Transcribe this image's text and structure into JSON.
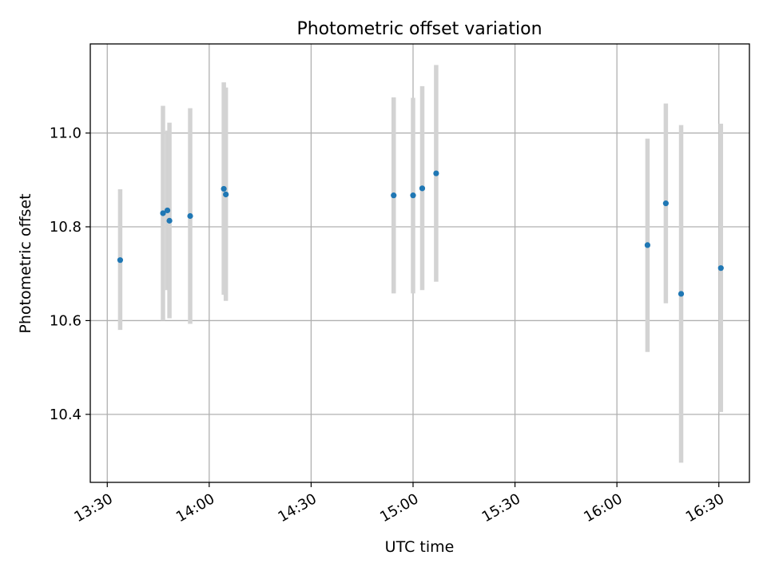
{
  "chart_data": {
    "type": "scatter",
    "title": "Photometric offset variation",
    "xlabel": "UTC time",
    "ylabel": "Photometric offset",
    "xlim": [
      "13:25",
      "16:39"
    ],
    "ylim": [
      10.255,
      11.19
    ],
    "x_ticks": [
      "13:30",
      "14:00",
      "14:30",
      "15:00",
      "15:30",
      "16:00",
      "16:30"
    ],
    "y_ticks": [
      "10.4",
      "10.6",
      "10.8",
      "11.0"
    ],
    "grid": true,
    "marker_color": "#1f77b4",
    "errorbar_color": "#d3d3d3",
    "points": [
      {
        "x": "13:33.8",
        "y": 10.729,
        "yerr_low": 10.58,
        "yerr_high": 10.88
      },
      {
        "x": "13:46.4",
        "y": 10.829,
        "yerr_low": 10.6,
        "yerr_high": 11.058
      },
      {
        "x": "13:47.7",
        "y": 10.835,
        "yerr_low": 10.665,
        "yerr_high": 11.005
      },
      {
        "x": "13:48.3",
        "y": 10.813,
        "yerr_low": 10.605,
        "yerr_high": 11.022
      },
      {
        "x": "13:54.4",
        "y": 10.823,
        "yerr_low": 10.593,
        "yerr_high": 11.053
      },
      {
        "x": "14:04.3",
        "y": 10.881,
        "yerr_low": 10.655,
        "yerr_high": 11.108
      },
      {
        "x": "14:04.9",
        "y": 10.869,
        "yerr_low": 10.642,
        "yerr_high": 11.097
      },
      {
        "x": "14:54.3",
        "y": 10.867,
        "yerr_low": 10.658,
        "yerr_high": 11.076
      },
      {
        "x": "15:00.0",
        "y": 10.867,
        "yerr_low": 10.658,
        "yerr_high": 11.075
      },
      {
        "x": "15:02.7",
        "y": 10.882,
        "yerr_low": 10.665,
        "yerr_high": 11.1
      },
      {
        "x": "15:06.8",
        "y": 10.914,
        "yerr_low": 10.683,
        "yerr_high": 11.145
      },
      {
        "x": "16:09.0",
        "y": 10.761,
        "yerr_low": 10.533,
        "yerr_high": 10.988
      },
      {
        "x": "16:14.4",
        "y": 10.85,
        "yerr_low": 10.637,
        "yerr_high": 11.063
      },
      {
        "x": "16:18.9",
        "y": 10.657,
        "yerr_low": 10.297,
        "yerr_high": 11.017
      },
      {
        "x": "16:30.6",
        "y": 10.712,
        "yerr_low": 10.405,
        "yerr_high": 11.02
      }
    ]
  }
}
